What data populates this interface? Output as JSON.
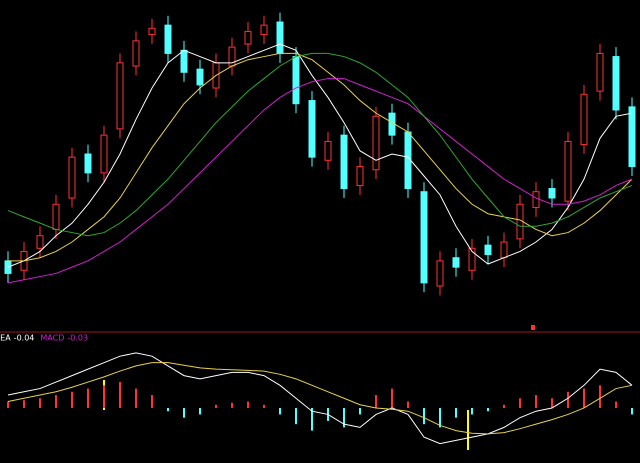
{
  "chart_data": [
    {
      "type": "candlestick",
      "open": [
        22,
        19,
        26,
        32,
        42,
        56,
        50,
        64,
        84,
        94,
        97,
        89,
        83,
        77,
        84,
        91,
        94,
        98,
        87,
        73,
        54,
        62,
        46,
        51,
        69,
        63,
        44,
        14,
        23,
        19,
        27,
        23,
        29,
        39,
        45,
        41,
        59,
        76,
        87,
        71
      ],
      "close": [
        18,
        25,
        30,
        40,
        55,
        50,
        62,
        85,
        92,
        96,
        88,
        82,
        78,
        85,
        90,
        95,
        97,
        88,
        72,
        55,
        60,
        45,
        52,
        68,
        62,
        45,
        15,
        22,
        20,
        26,
        24,
        28,
        40,
        44,
        42,
        60,
        75,
        88,
        70,
        52
      ],
      "high": [
        25,
        28,
        33,
        43,
        58,
        59,
        65,
        88,
        95,
        99,
        100,
        92,
        86,
        88,
        93,
        98,
        100,
        101,
        90,
        76,
        63,
        65,
        55,
        71,
        72,
        66,
        47,
        25,
        26,
        29,
        30,
        31,
        43,
        47,
        48,
        63,
        78,
        91,
        90,
        74
      ],
      "low": [
        15,
        16,
        23,
        29,
        39,
        47,
        47,
        61,
        81,
        91,
        85,
        79,
        75,
        74,
        81,
        88,
        91,
        85,
        69,
        52,
        51,
        42,
        43,
        48,
        59,
        42,
        12,
        11,
        17,
        16,
        21,
        20,
        26,
        36,
        39,
        38,
        56,
        73,
        67,
        49
      ],
      "up_color": "#ff3232",
      "down_color": "#54ffff",
      "series": [
        {
          "color": "#ffffff",
          "values": [
            20,
            22,
            25,
            30,
            34,
            40,
            47,
            56,
            67,
            77,
            85,
            89,
            87,
            85,
            85,
            87,
            89,
            91,
            89,
            81,
            74,
            66,
            57,
            54,
            56,
            55,
            49,
            43,
            33,
            25,
            21,
            23,
            25,
            28,
            32,
            39,
            48,
            61,
            68,
            69
          ]
        },
        {
          "color": "#e8d24a",
          "values": [
            22,
            22,
            23,
            25,
            28,
            32,
            36,
            42,
            50,
            58,
            65,
            72,
            77,
            81,
            84,
            86,
            87,
            88,
            88,
            86,
            82,
            78,
            73,
            69,
            66,
            63,
            57,
            51,
            45,
            40,
            37,
            36,
            35,
            32,
            30,
            31,
            34,
            38,
            43,
            48
          ]
        },
        {
          "color": "#d020d0",
          "values": [
            15,
            16,
            17,
            18,
            20,
            22,
            25,
            28,
            32,
            36,
            40,
            45,
            50,
            55,
            60,
            65,
            70,
            74,
            77,
            79,
            80,
            80,
            78,
            76,
            74,
            72,
            68,
            64,
            60,
            56,
            52,
            48,
            45,
            42,
            40,
            40,
            41,
            43,
            46,
            48
          ]
        },
        {
          "color": "#2fa82f",
          "values": [
            38,
            36,
            34,
            32,
            31,
            30,
            31,
            34,
            38,
            43,
            48,
            54,
            60,
            66,
            71,
            76,
            80,
            84,
            87,
            88,
            88,
            87,
            85,
            82,
            78,
            74,
            68,
            62,
            55,
            48,
            42,
            36,
            33,
            33,
            34,
            36,
            39,
            42,
            44,
            46
          ]
        }
      ],
      "ylim": [
        0,
        105
      ]
    },
    {
      "type": "macd",
      "legend": [
        {
          "name": "DEA",
          "value": -0.04,
          "color": "#ffffff"
        },
        {
          "name": "MACD",
          "value": -0.03,
          "color": "#d020d0"
        }
      ],
      "histogram": [
        0.1,
        0.12,
        0.15,
        0.2,
        0.25,
        0.3,
        0.35,
        0.4,
        0.3,
        0.2,
        -0.05,
        -0.15,
        -0.1,
        0.05,
        0.08,
        0.1,
        0.05,
        -0.1,
        -0.25,
        -0.35,
        -0.2,
        -0.3,
        -0.1,
        0.2,
        0.3,
        0.1,
        -0.25,
        -0.3,
        -0.15,
        -0.1,
        -0.05,
        0.05,
        0.15,
        0.2,
        0.15,
        0.25,
        0.3,
        0.35,
        0.1,
        -0.1
      ],
      "up_color": "#ff3232",
      "down_color": "#54ffff",
      "series": [
        {
          "color": "#ffffff",
          "values": [
            0.2,
            0.25,
            0.3,
            0.4,
            0.5,
            0.6,
            0.7,
            0.8,
            0.85,
            0.8,
            0.65,
            0.5,
            0.45,
            0.5,
            0.55,
            0.55,
            0.5,
            0.35,
            0.15,
            -0.05,
            -0.1,
            -0.25,
            -0.3,
            -0.1,
            0,
            -0.1,
            -0.45,
            -0.55,
            -0.5,
            -0.45,
            -0.4,
            -0.3,
            -0.15,
            -0.05,
            0,
            0.15,
            0.35,
            0.6,
            0.55,
            0.35
          ]
        },
        {
          "color": "#e8d24a",
          "values": [
            0.1,
            0.15,
            0.2,
            0.25,
            0.32,
            0.4,
            0.48,
            0.57,
            0.65,
            0.7,
            0.7,
            0.66,
            0.62,
            0.6,
            0.59,
            0.58,
            0.57,
            0.52,
            0.45,
            0.35,
            0.25,
            0.15,
            0.05,
            0,
            -0.02,
            -0.05,
            -0.15,
            -0.27,
            -0.35,
            -0.39,
            -0.4,
            -0.38,
            -0.32,
            -0.25,
            -0.18,
            -0.1,
            0,
            0.15,
            0.3,
            0.35
          ]
        }
      ],
      "ylim": [
        -0.85,
        1.05
      ]
    }
  ]
}
